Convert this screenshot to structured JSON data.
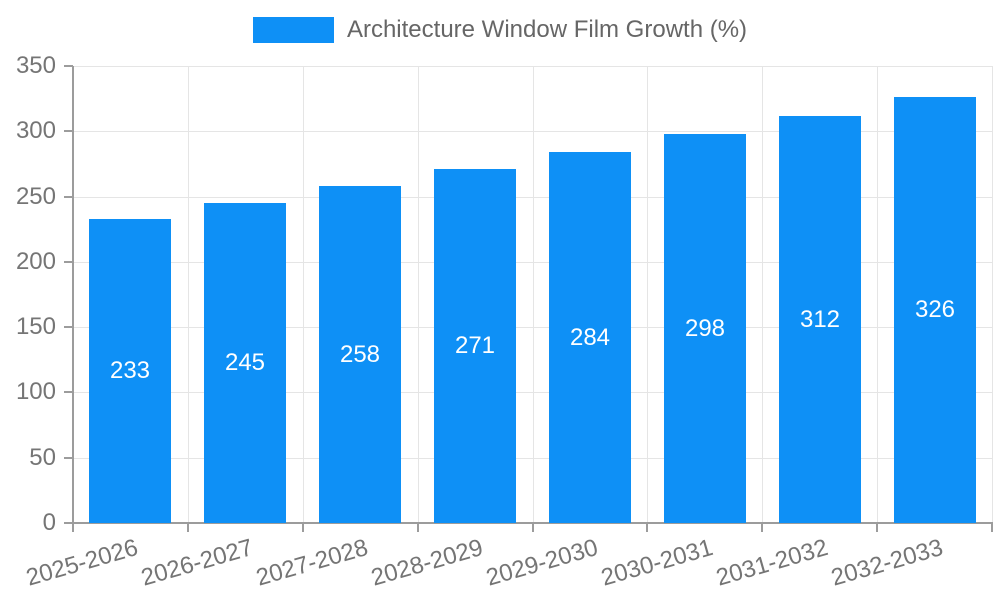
{
  "legend": {
    "label": "Architecture Window Film Growth (%)"
  },
  "chart_data": {
    "type": "bar",
    "title": "",
    "series_name": "Architecture Window Film Growth (%)",
    "categories": [
      "2025-2026",
      "2026-2027",
      "2027-2028",
      "2028-2029",
      "2029-2030",
      "2030-2031",
      "2031-2032",
      "2032-2033"
    ],
    "values": [
      233,
      245,
      258,
      271,
      284,
      298,
      312,
      326
    ],
    "xlabel": "",
    "ylabel": "",
    "ylim": [
      0,
      350
    ],
    "y_ticks": [
      0,
      50,
      100,
      150,
      200,
      250,
      300,
      350
    ],
    "grid": true,
    "legend_position": "top-center",
    "value_labels": "inside-center",
    "x_label_rotation_deg": -16,
    "colors": {
      "bar": "#0e90f6",
      "value_label": "#ffffff",
      "axis_label": "#757575",
      "legend_text": "#666666",
      "gridline": "#e5e5e5",
      "axis_line": "#9c9c9c",
      "background": "#ffffff"
    }
  }
}
